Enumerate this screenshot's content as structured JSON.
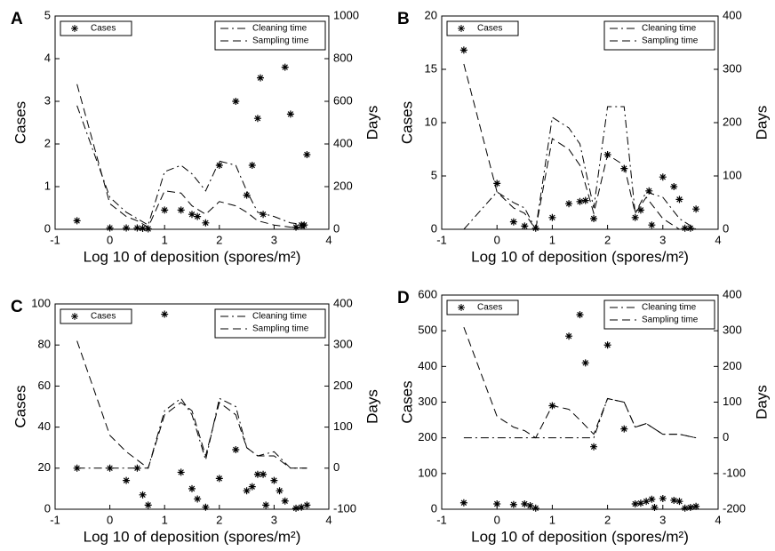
{
  "chart_data": [
    {
      "type": "scatter",
      "label": "A",
      "xlabel": "Log 10 of deposition (spores/m²)",
      "ylabel": "Cases",
      "y2label": "Days",
      "xlim": [
        -1,
        4
      ],
      "xticks": [
        -1,
        0,
        1,
        2,
        3,
        4
      ],
      "ylim": [
        0,
        5
      ],
      "yticks": [
        0,
        1,
        2,
        3,
        4,
        5
      ],
      "y2lim": [
        0,
        1000
      ],
      "y2ticks": [
        0,
        200,
        400,
        600,
        800,
        1000
      ],
      "series": [
        {
          "name": "Cases",
          "type": "scatter",
          "color": "#000000",
          "x": [
            -0.6,
            0,
            0.3,
            0.5,
            0.6,
            0.7,
            1.0,
            1.3,
            1.5,
            1.6,
            1.75,
            2.0,
            2.3,
            2.5,
            2.6,
            2.7,
            2.75,
            2.8,
            3.2,
            3.3,
            3.4,
            3.5,
            3.55,
            3.6
          ],
          "values": [
            0.2,
            0.03,
            0.03,
            0.03,
            0.02,
            0.01,
            0.45,
            0.45,
            0.35,
            0.3,
            0.15,
            1.5,
            3.0,
            0.8,
            1.5,
            2.6,
            3.55,
            0.35,
            3.8,
            2.7,
            0.05,
            0.1,
            0.1,
            1.75
          ]
        },
        {
          "name": "Cleaning time",
          "type": "line",
          "axis": "y2",
          "dash": "dash-dot",
          "color": "#000000",
          "x": [
            -0.6,
            0,
            0.3,
            0.5,
            0.7,
            1.0,
            1.3,
            1.5,
            1.75,
            2.0,
            2.3,
            2.5,
            2.7,
            3.0,
            3.3,
            3.6
          ],
          "values": [
            580,
            150,
            80,
            50,
            20,
            270,
            300,
            260,
            180,
            320,
            300,
            180,
            80,
            60,
            30,
            20
          ]
        },
        {
          "name": "Sampling time",
          "type": "line",
          "axis": "y2",
          "dash": "dash",
          "color": "#000000",
          "x": [
            -0.6,
            0,
            0.3,
            0.5,
            0.7,
            1.0,
            1.3,
            1.5,
            1.75,
            2.0,
            2.3,
            2.5,
            2.7,
            3.0,
            3.3,
            3.6
          ],
          "values": [
            680,
            120,
            60,
            40,
            10,
            180,
            170,
            110,
            70,
            130,
            110,
            80,
            40,
            20,
            10,
            5
          ]
        }
      ]
    },
    {
      "type": "scatter",
      "label": "B",
      "xlabel": "Log 10 of deposition (spores/m²)",
      "ylabel": "Cases",
      "y2label": "Days",
      "xlim": [
        -1,
        4
      ],
      "xticks": [
        -1,
        0,
        1,
        2,
        3,
        4
      ],
      "ylim": [
        0,
        20
      ],
      "yticks": [
        0,
        5,
        10,
        15,
        20
      ],
      "y2lim": [
        0,
        400
      ],
      "y2ticks": [
        0,
        100,
        200,
        300,
        400
      ],
      "series": [
        {
          "name": "Cases",
          "type": "scatter",
          "color": "#000000",
          "x": [
            -0.6,
            0,
            0.3,
            0.5,
            0.7,
            1.0,
            1.3,
            1.5,
            1.6,
            1.75,
            2.0,
            2.3,
            2.5,
            2.6,
            2.75,
            2.8,
            3.0,
            3.2,
            3.3,
            3.4,
            3.5,
            3.6
          ],
          "values": [
            16.8,
            4.3,
            0.7,
            0.3,
            0.1,
            1.1,
            2.4,
            2.6,
            2.7,
            1.0,
            7.0,
            5.7,
            1.1,
            1.8,
            3.6,
            0.4,
            4.9,
            4.0,
            2.8,
            0.1,
            0.1,
            1.9
          ]
        },
        {
          "name": "Cleaning time",
          "type": "line",
          "axis": "y2",
          "dash": "dash-dot",
          "color": "#000000",
          "x": [
            -0.6,
            0,
            0.3,
            0.5,
            0.7,
            1.0,
            1.3,
            1.5,
            1.75,
            2.0,
            2.3,
            2.5,
            2.7,
            3.0,
            3.3,
            3.6
          ],
          "values": [
            0,
            70,
            50,
            40,
            0,
            210,
            190,
            160,
            40,
            230,
            230,
            30,
            70,
            60,
            20,
            0
          ]
        },
        {
          "name": "Sampling time",
          "type": "line",
          "axis": "y2",
          "dash": "dash",
          "color": "#000000",
          "x": [
            -0.6,
            0,
            0.3,
            0.5,
            0.7,
            1.0,
            1.3,
            1.5,
            1.75,
            2.0,
            2.3,
            2.5,
            2.7,
            3.0,
            3.3,
            3.6
          ],
          "values": [
            310,
            70,
            40,
            30,
            0,
            170,
            150,
            120,
            30,
            140,
            120,
            30,
            60,
            20,
            0,
            0
          ]
        }
      ]
    },
    {
      "type": "scatter",
      "label": "C",
      "xlabel": "Log 10 of deposition (spores/m²)",
      "ylabel": "Cases",
      "y2label": "Days",
      "xlim": [
        -1,
        4
      ],
      "xticks": [
        -1,
        0,
        1,
        2,
        3,
        4
      ],
      "ylim": [
        0,
        100
      ],
      "yticks": [
        0,
        20,
        40,
        60,
        80,
        100
      ],
      "y2lim": [
        -100,
        400
      ],
      "y2ticks": [
        -100,
        0,
        100,
        200,
        300,
        400
      ],
      "series": [
        {
          "name": "Cases",
          "type": "scatter",
          "color": "#000000",
          "x": [
            -0.6,
            0,
            0.3,
            0.5,
            0.6,
            0.7,
            1.0,
            1.3,
            1.5,
            1.6,
            1.75,
            2.0,
            2.3,
            2.5,
            2.6,
            2.7,
            2.8,
            2.85,
            3.0,
            3.1,
            3.2,
            3.4,
            3.5,
            3.6
          ],
          "values": [
            20,
            20,
            14,
            20,
            7,
            2,
            95,
            18,
            10,
            5,
            1,
            15,
            29,
            9,
            11,
            17,
            17,
            2,
            14,
            9,
            4,
            0.5,
            1,
            2
          ]
        },
        {
          "name": "Cleaning time",
          "type": "line",
          "axis": "y2",
          "dash": "dash-dot",
          "color": "#000000",
          "x": [
            -0.6,
            0,
            0.3,
            0.5,
            0.7,
            1.0,
            1.3,
            1.5,
            1.75,
            2.0,
            2.3,
            2.5,
            2.7,
            3.0,
            3.3,
            3.6
          ],
          "values": [
            0,
            0,
            0,
            0,
            0,
            140,
            170,
            130,
            20,
            170,
            150,
            50,
            30,
            40,
            0,
            0
          ]
        },
        {
          "name": "Sampling time",
          "type": "line",
          "axis": "y2",
          "dash": "dash",
          "color": "#000000",
          "x": [
            -0.6,
            0,
            0.3,
            0.5,
            0.7,
            1.0,
            1.3,
            1.5,
            1.75,
            2.0,
            2.3,
            2.5,
            2.7,
            3.0,
            3.3,
            3.6
          ],
          "values": [
            310,
            80,
            40,
            20,
            0,
            130,
            160,
            140,
            30,
            160,
            130,
            50,
            30,
            30,
            0,
            0
          ]
        }
      ]
    },
    {
      "type": "scatter",
      "label": "D",
      "xlabel": "Log 10 of deposition (spores/m²)",
      "ylabel": "Cases",
      "y2label": "Days",
      "xlim": [
        -1,
        4
      ],
      "xticks": [
        -1,
        0,
        1,
        2,
        3,
        4
      ],
      "ylim": [
        0,
        600
      ],
      "yticks": [
        0,
        100,
        200,
        300,
        400,
        500,
        600
      ],
      "y2lim": [
        -200,
        400
      ],
      "y2ticks": [
        -200,
        -100,
        0,
        100,
        200,
        300,
        400
      ],
      "series": [
        {
          "name": "Cases",
          "type": "scatter",
          "color": "#000000",
          "x": [
            -0.6,
            0,
            0.3,
            0.5,
            0.6,
            0.7,
            1.0,
            1.3,
            1.5,
            1.6,
            1.75,
            2.0,
            2.3,
            2.5,
            2.6,
            2.7,
            2.8,
            2.85,
            3.0,
            3.2,
            3.3,
            3.4,
            3.5,
            3.6
          ],
          "values": [
            18,
            15,
            13,
            15,
            10,
            3,
            290,
            485,
            545,
            410,
            175,
            460,
            225,
            15,
            17,
            22,
            28,
            5,
            30,
            25,
            22,
            3,
            5,
            8
          ]
        },
        {
          "name": "Cleaning time",
          "type": "line",
          "axis": "y2",
          "dash": "dash-dot",
          "color": "#000000",
          "x": [
            -0.6,
            0,
            0.3,
            0.5,
            0.7,
            1.0,
            1.3,
            1.5,
            1.75,
            2.0,
            2.3,
            2.5,
            2.7,
            3.0,
            3.3,
            3.6
          ],
          "values": [
            0,
            0,
            0,
            0,
            0,
            0,
            0,
            0,
            0,
            110,
            100,
            30,
            40,
            10,
            10,
            0
          ]
        },
        {
          "name": "Sampling time",
          "type": "line",
          "axis": "y2",
          "dash": "dash",
          "color": "#000000",
          "x": [
            -0.6,
            0,
            0.3,
            0.5,
            0.7,
            1.0,
            1.3,
            1.5,
            1.75,
            2.0,
            2.3,
            2.5,
            2.7,
            3.0,
            3.3,
            3.6
          ],
          "values": [
            310,
            60,
            30,
            20,
            0,
            90,
            80,
            50,
            10,
            110,
            100,
            30,
            40,
            10,
            10,
            0
          ]
        }
      ]
    }
  ]
}
